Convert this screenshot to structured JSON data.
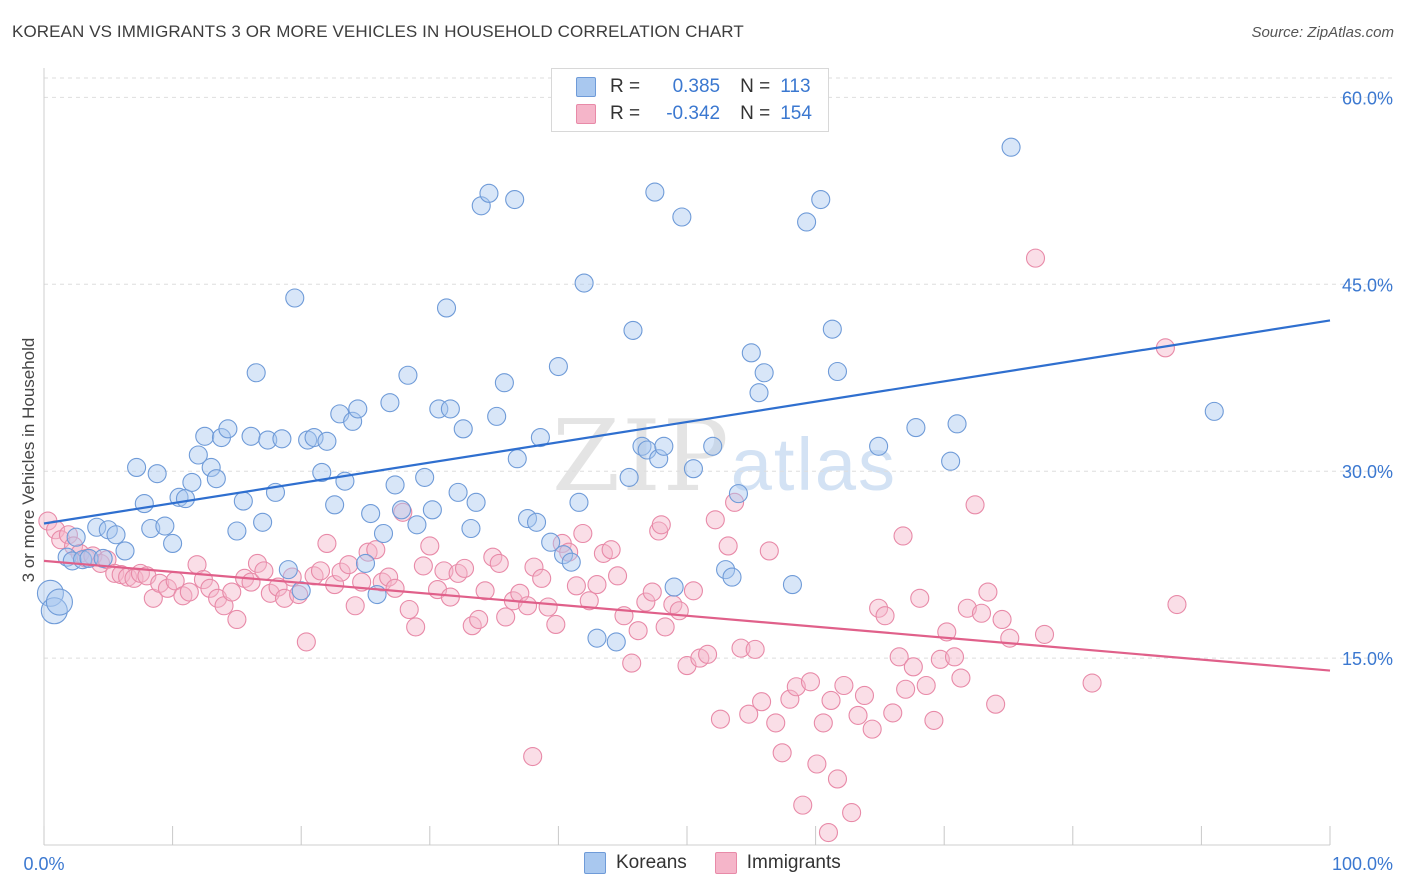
{
  "header": {
    "title": "KOREAN VS IMMIGRANTS 3 OR MORE VEHICLES IN HOUSEHOLD CORRELATION CHART",
    "source": "Source: ZipAtlas.com"
  },
  "watermark": {
    "zip": "ZIP",
    "atlas": "atlas"
  },
  "legend_stats": [
    {
      "r_label": "R =",
      "r_value": "0.385",
      "n_label": "N =",
      "n_value": "113"
    },
    {
      "r_label": "R =",
      "r_value": "-0.342",
      "n_label": "N =",
      "n_value": "154"
    }
  ],
  "colors": {
    "koreans_fill": "#a9c8ef",
    "koreans_stroke": "#6f9bd8",
    "koreans_line": "#2f6fcf",
    "immigrants_fill": "#f5b5c9",
    "immigrants_stroke": "#e88aa8",
    "immigrants_line": "#e0608a",
    "tick_label": "#3b78d0",
    "grid": "#dedede"
  },
  "chart_data": {
    "type": "scatter",
    "title": "KOREAN VS IMMIGRANTS 3 OR MORE VEHICLES IN HOUSEHOLD CORRELATION CHART",
    "xlabel": "",
    "ylabel": "3 or more Vehicles in Household",
    "xlim": [
      0,
      100
    ],
    "ylim": [
      0,
      63
    ],
    "x_tick_labels": [
      "0.0%",
      "100.0%"
    ],
    "y_ticks": [
      15,
      30,
      45,
      60
    ],
    "y_tick_labels": [
      "15.0%",
      "30.0%",
      "45.0%",
      "60.0%"
    ],
    "grid": true,
    "legend_position": "top-center and bottom",
    "series": [
      {
        "name": "Koreans",
        "r": 0.385,
        "n": 113,
        "trend": {
          "x": [
            0,
            100
          ],
          "y": [
            25.8,
            42.1
          ]
        },
        "points": [
          [
            0.5,
            20.2
          ],
          [
            0.8,
            18.8
          ],
          [
            1.2,
            19.5
          ],
          [
            1.8,
            23.1
          ],
          [
            2.2,
            22.8
          ],
          [
            2.5,
            24.7
          ],
          [
            3.0,
            22.9
          ],
          [
            3.5,
            23.0
          ],
          [
            4.1,
            25.5
          ],
          [
            4.6,
            23.0
          ],
          [
            5.0,
            25.3
          ],
          [
            5.6,
            24.9
          ],
          [
            6.3,
            23.6
          ],
          [
            7.2,
            30.3
          ],
          [
            7.8,
            27.4
          ],
          [
            8.3,
            25.4
          ],
          [
            8.8,
            29.8
          ],
          [
            9.4,
            25.6
          ],
          [
            10.0,
            24.2
          ],
          [
            10.5,
            27.9
          ],
          [
            11.0,
            27.8
          ],
          [
            11.5,
            29.1
          ],
          [
            12.0,
            31.3
          ],
          [
            12.5,
            32.8
          ],
          [
            13.0,
            30.3
          ],
          [
            13.4,
            29.4
          ],
          [
            13.8,
            32.7
          ],
          [
            14.3,
            33.4
          ],
          [
            15.0,
            25.2
          ],
          [
            15.5,
            27.6
          ],
          [
            16.1,
            32.8
          ],
          [
            16.5,
            37.9
          ],
          [
            17.0,
            25.9
          ],
          [
            17.4,
            32.5
          ],
          [
            18.0,
            28.3
          ],
          [
            18.5,
            32.6
          ],
          [
            19.0,
            22.1
          ],
          [
            19.5,
            43.9
          ],
          [
            20.0,
            20.4
          ],
          [
            20.5,
            32.5
          ],
          [
            21.0,
            32.7
          ],
          [
            21.6,
            29.9
          ],
          [
            22.0,
            32.4
          ],
          [
            22.6,
            27.3
          ],
          [
            23.0,
            34.6
          ],
          [
            23.4,
            29.2
          ],
          [
            24.0,
            34.0
          ],
          [
            24.4,
            35.0
          ],
          [
            25.0,
            22.6
          ],
          [
            25.4,
            26.6
          ],
          [
            25.9,
            20.1
          ],
          [
            26.4,
            25.0
          ],
          [
            26.9,
            35.5
          ],
          [
            27.3,
            28.9
          ],
          [
            27.8,
            26.9
          ],
          [
            28.3,
            37.7
          ],
          [
            29.0,
            25.7
          ],
          [
            29.6,
            29.5
          ],
          [
            30.2,
            26.9
          ],
          [
            30.7,
            35.0
          ],
          [
            31.3,
            43.1
          ],
          [
            31.6,
            35.0
          ],
          [
            32.2,
            28.3
          ],
          [
            32.6,
            33.4
          ],
          [
            33.2,
            25.4
          ],
          [
            33.6,
            27.5
          ],
          [
            34.0,
            51.3
          ],
          [
            34.6,
            52.3
          ],
          [
            35.2,
            34.4
          ],
          [
            35.8,
            37.1
          ],
          [
            36.6,
            51.8
          ],
          [
            36.8,
            31.0
          ],
          [
            37.6,
            26.2
          ],
          [
            38.3,
            25.9
          ],
          [
            38.6,
            32.7
          ],
          [
            39.4,
            24.3
          ],
          [
            40.0,
            38.4
          ],
          [
            40.4,
            23.3
          ],
          [
            41.0,
            22.7
          ],
          [
            41.6,
            27.5
          ],
          [
            42.0,
            45.1
          ],
          [
            43.0,
            16.6
          ],
          [
            44.5,
            16.3
          ],
          [
            45.5,
            29.5
          ],
          [
            45.8,
            41.3
          ],
          [
            46.5,
            32.0
          ],
          [
            46.9,
            31.7
          ],
          [
            47.5,
            52.4
          ],
          [
            47.8,
            31.0
          ],
          [
            48.2,
            32.0
          ],
          [
            49.0,
            20.7
          ],
          [
            49.6,
            50.4
          ],
          [
            50.5,
            30.2
          ],
          [
            52.0,
            32.0
          ],
          [
            53.0,
            22.1
          ],
          [
            53.5,
            21.5
          ],
          [
            54.0,
            28.2
          ],
          [
            55.0,
            39.5
          ],
          [
            55.6,
            36.3
          ],
          [
            56.0,
            37.9
          ],
          [
            58.2,
            20.9
          ],
          [
            59.3,
            50.0
          ],
          [
            60.4,
            51.8
          ],
          [
            61.3,
            41.4
          ],
          [
            61.7,
            38.0
          ],
          [
            64.9,
            32.0
          ],
          [
            67.8,
            33.5
          ],
          [
            70.5,
            30.8
          ],
          [
            71.0,
            33.8
          ],
          [
            75.2,
            56.0
          ],
          [
            91.0,
            34.8
          ]
        ]
      },
      {
        "name": "Immigrants",
        "r": -0.342,
        "n": 154,
        "trend": {
          "x": [
            0,
            100
          ],
          "y": [
            22.8,
            14.0
          ]
        },
        "points": [
          [
            0.3,
            26.0
          ],
          [
            0.9,
            25.3
          ],
          [
            1.3,
            24.5
          ],
          [
            1.9,
            24.9
          ],
          [
            2.3,
            24.0
          ],
          [
            2.8,
            23.4
          ],
          [
            3.3,
            23.0
          ],
          [
            3.8,
            23.2
          ],
          [
            4.4,
            22.6
          ],
          [
            4.9,
            22.9
          ],
          [
            5.5,
            21.8
          ],
          [
            6.0,
            21.7
          ],
          [
            6.5,
            21.5
          ],
          [
            7.0,
            21.4
          ],
          [
            7.5,
            21.8
          ],
          [
            8.0,
            21.6
          ],
          [
            8.5,
            19.8
          ],
          [
            9.0,
            21.0
          ],
          [
            9.6,
            20.6
          ],
          [
            10.2,
            21.2
          ],
          [
            10.8,
            20.0
          ],
          [
            11.3,
            20.3
          ],
          [
            11.9,
            22.5
          ],
          [
            12.4,
            21.3
          ],
          [
            12.9,
            20.6
          ],
          [
            13.5,
            19.8
          ],
          [
            14.0,
            19.2
          ],
          [
            14.6,
            20.3
          ],
          [
            15.0,
            18.1
          ],
          [
            15.6,
            21.4
          ],
          [
            16.1,
            21.1
          ],
          [
            16.6,
            22.6
          ],
          [
            17.1,
            22.0
          ],
          [
            17.6,
            20.2
          ],
          [
            18.2,
            20.7
          ],
          [
            18.7,
            19.8
          ],
          [
            19.3,
            21.5
          ],
          [
            19.8,
            20.1
          ],
          [
            20.4,
            16.3
          ],
          [
            21.0,
            21.6
          ],
          [
            21.5,
            22.0
          ],
          [
            22.0,
            24.2
          ],
          [
            22.6,
            20.9
          ],
          [
            23.1,
            21.9
          ],
          [
            23.7,
            22.5
          ],
          [
            24.2,
            19.2
          ],
          [
            24.7,
            21.1
          ],
          [
            25.2,
            23.5
          ],
          [
            25.8,
            23.7
          ],
          [
            26.3,
            21.1
          ],
          [
            26.8,
            21.5
          ],
          [
            27.3,
            20.6
          ],
          [
            27.9,
            26.7
          ],
          [
            28.4,
            18.9
          ],
          [
            28.9,
            17.5
          ],
          [
            29.5,
            22.4
          ],
          [
            30.0,
            24.0
          ],
          [
            30.6,
            20.5
          ],
          [
            31.1,
            22.0
          ],
          [
            31.6,
            19.9
          ],
          [
            32.2,
            21.8
          ],
          [
            32.7,
            22.2
          ],
          [
            33.3,
            17.6
          ],
          [
            33.8,
            18.1
          ],
          [
            34.3,
            20.4
          ],
          [
            34.9,
            23.1
          ],
          [
            35.4,
            22.6
          ],
          [
            35.9,
            18.3
          ],
          [
            36.5,
            19.6
          ],
          [
            37.0,
            20.2
          ],
          [
            37.6,
            19.2
          ],
          [
            38.1,
            22.3
          ],
          [
            38.7,
            21.4
          ],
          [
            39.2,
            19.1
          ],
          [
            39.8,
            17.7
          ],
          [
            40.3,
            24.2
          ],
          [
            40.8,
            23.5
          ],
          [
            41.4,
            20.8
          ],
          [
            41.9,
            25.0
          ],
          [
            42.4,
            19.6
          ],
          [
            43.0,
            20.9
          ],
          [
            43.5,
            23.4
          ],
          [
            44.1,
            23.7
          ],
          [
            44.6,
            21.6
          ],
          [
            45.1,
            18.4
          ],
          [
            45.7,
            14.6
          ],
          [
            46.2,
            17.2
          ],
          [
            46.8,
            19.5
          ],
          [
            47.3,
            20.3
          ],
          [
            47.8,
            25.2
          ],
          [
            48.3,
            17.5
          ],
          [
            48.9,
            19.3
          ],
          [
            49.4,
            18.8
          ],
          [
            50.0,
            14.4
          ],
          [
            50.5,
            20.4
          ],
          [
            51.0,
            15.0
          ],
          [
            51.6,
            15.3
          ],
          [
            52.2,
            26.1
          ],
          [
            52.6,
            10.1
          ],
          [
            53.2,
            24.0
          ],
          [
            53.7,
            27.5
          ],
          [
            54.2,
            15.8
          ],
          [
            54.8,
            10.5
          ],
          [
            55.3,
            15.7
          ],
          [
            55.8,
            11.5
          ],
          [
            56.4,
            23.6
          ],
          [
            56.9,
            9.8
          ],
          [
            57.4,
            7.4
          ],
          [
            58.0,
            11.7
          ],
          [
            58.5,
            12.7
          ],
          [
            59.0,
            3.2
          ],
          [
            59.6,
            13.1
          ],
          [
            60.1,
            6.5
          ],
          [
            60.6,
            9.8
          ],
          [
            61.2,
            11.6
          ],
          [
            61.7,
            5.3
          ],
          [
            62.2,
            12.8
          ],
          [
            62.8,
            2.6
          ],
          [
            63.3,
            10.4
          ],
          [
            63.8,
            12.0
          ],
          [
            64.4,
            9.3
          ],
          [
            64.9,
            19.0
          ],
          [
            65.4,
            18.4
          ],
          [
            66.0,
            10.6
          ],
          [
            66.5,
            15.1
          ],
          [
            67.0,
            12.5
          ],
          [
            67.6,
            14.3
          ],
          [
            68.1,
            19.8
          ],
          [
            68.6,
            12.8
          ],
          [
            69.2,
            10.0
          ],
          [
            69.7,
            14.9
          ],
          [
            70.2,
            17.1
          ],
          [
            70.8,
            15.1
          ],
          [
            71.3,
            13.4
          ],
          [
            71.8,
            19.0
          ],
          [
            72.4,
            27.3
          ],
          [
            72.9,
            18.6
          ],
          [
            73.4,
            20.3
          ],
          [
            74.0,
            11.3
          ],
          [
            74.5,
            18.1
          ],
          [
            75.1,
            16.6
          ],
          [
            77.1,
            47.1
          ],
          [
            77.8,
            16.9
          ],
          [
            81.5,
            13.0
          ],
          [
            87.2,
            39.9
          ],
          [
            88.1,
            19.3
          ],
          [
            38.0,
            7.1
          ],
          [
            61.0,
            1.0
          ],
          [
            48.0,
            25.7
          ],
          [
            66.8,
            24.8
          ]
        ]
      }
    ]
  }
}
